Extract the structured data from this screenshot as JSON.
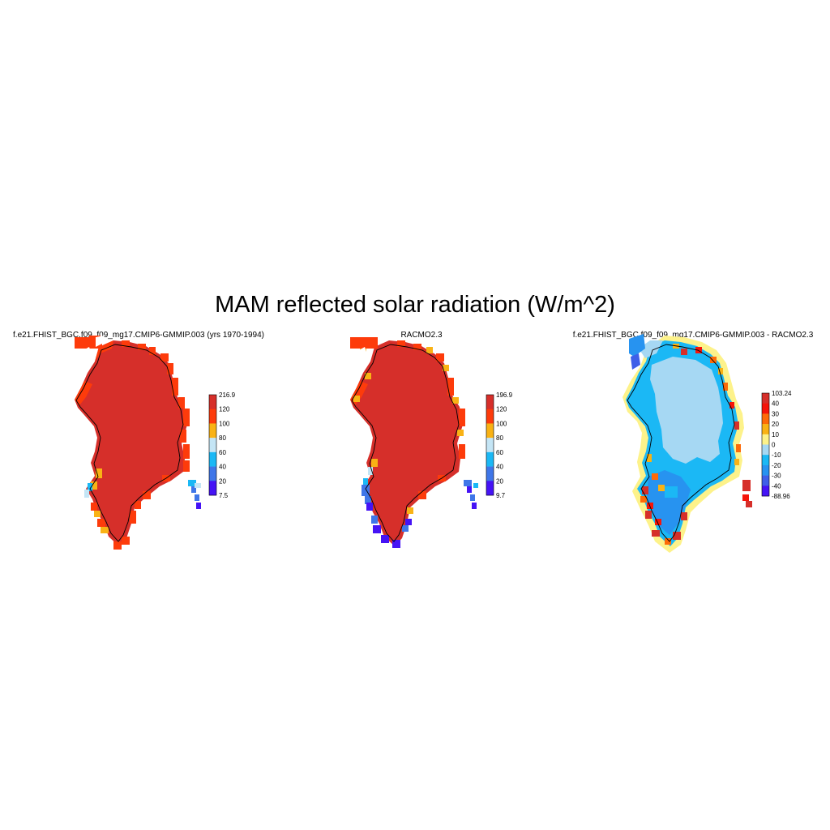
{
  "figure": {
    "title": "MAM reflected solar radiation (W/m^2)"
  },
  "panels": [
    {
      "title": "f.e21.FHIST_BGC.f09_f09_mg17.CMIP6-GMMIP.003 (yrs 1970-1994)",
      "colorbar": {
        "labels": [
          "216.9",
          "120",
          "100",
          "80",
          "60",
          "40",
          "20",
          "7.5"
        ],
        "colors": [
          "#d62f2a",
          "#fd3b0b",
          "#f9b215",
          "#c4e5f5",
          "#1bb8f5",
          "#3f76e8",
          "#4513f5"
        ]
      }
    },
    {
      "title": "RACMO2.3",
      "colorbar": {
        "labels": [
          "196.9",
          "120",
          "100",
          "80",
          "60",
          "40",
          "20",
          "9.7"
        ],
        "colors": [
          "#d62f2a",
          "#fd3b0b",
          "#f9b215",
          "#c4e5f5",
          "#1bb8f5",
          "#3f76e8",
          "#4513f5"
        ]
      }
    },
    {
      "title": "f.e21.FHIST_BGC.f09_f09_mg17.CMIP6-GMMIP.003 - RACMO2.3",
      "colorbar": {
        "labels": [
          "103.24",
          "40",
          "30",
          "20",
          "10",
          "0",
          "-10",
          "-20",
          "-30",
          "-40",
          "-88.96"
        ],
        "colors": [
          "#d62f2a",
          "#f5140a",
          "#fd6a08",
          "#f9b215",
          "#fdf28a",
          "#a6d8f3",
          "#1bb8f5",
          "#2793f0",
          "#3f5fe8",
          "#4513f5"
        ]
      }
    }
  ]
}
